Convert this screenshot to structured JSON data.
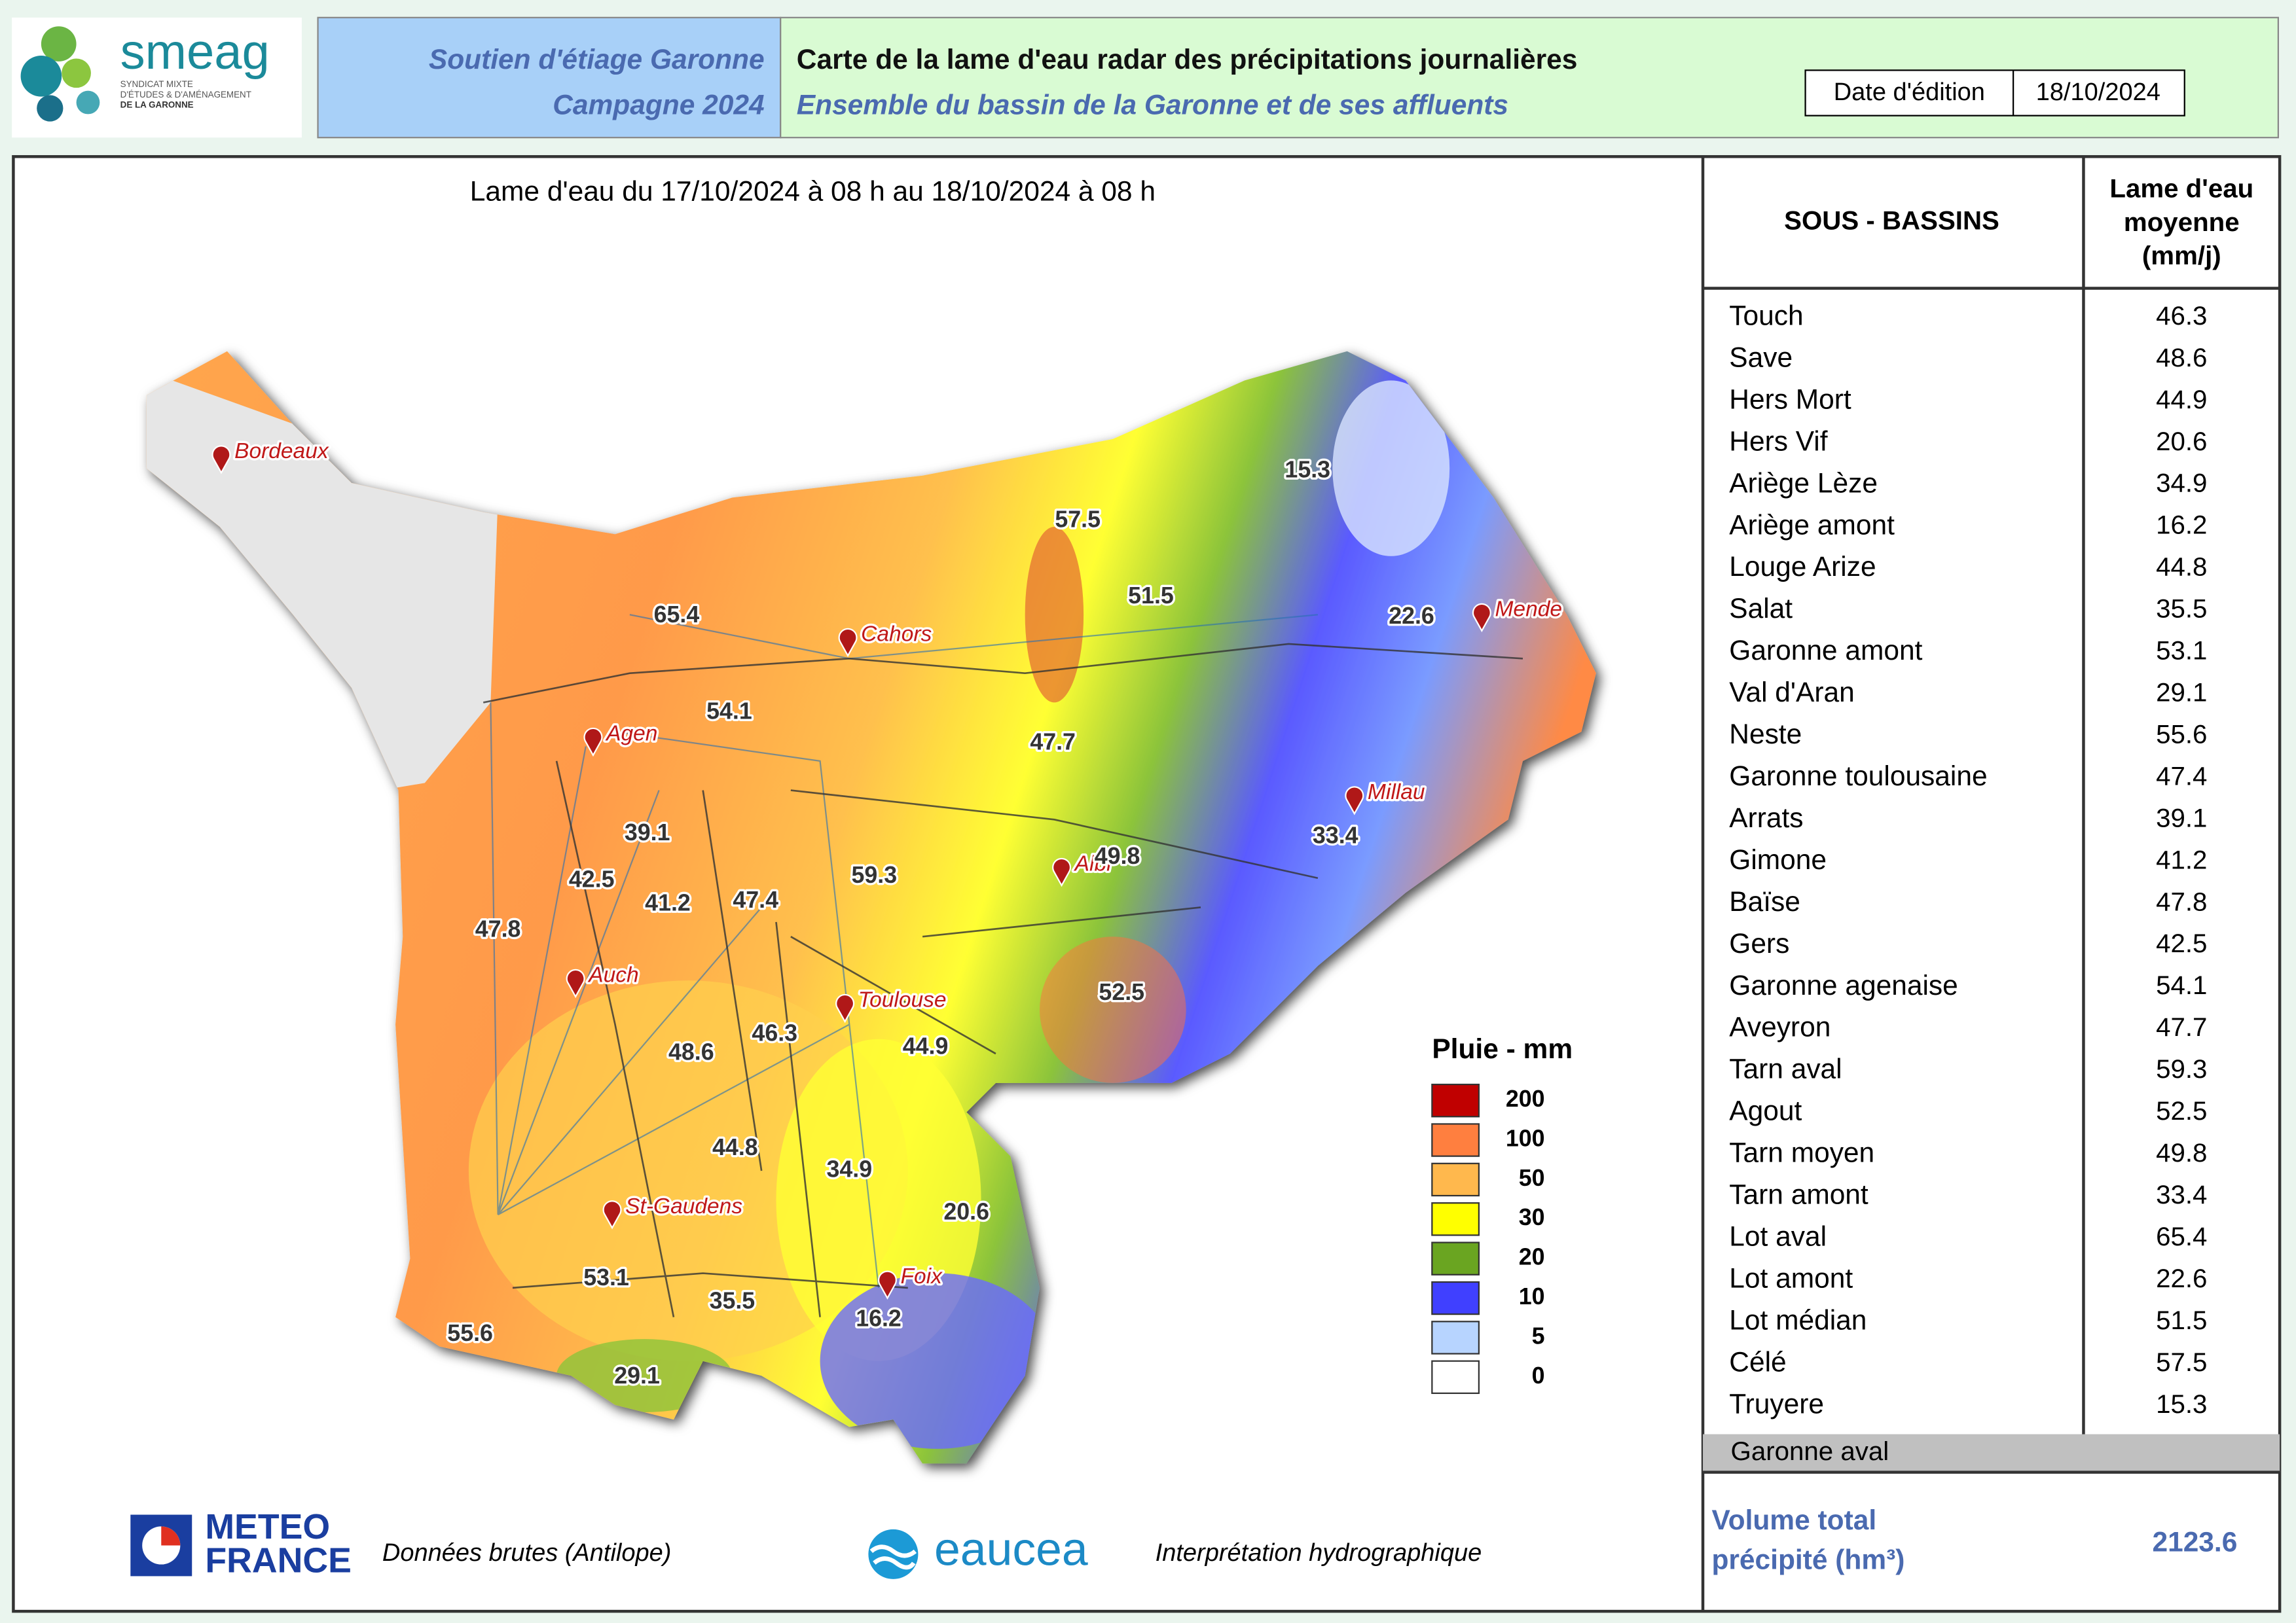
{
  "header": {
    "logo": {
      "name": "smeag",
      "lines": [
        "SYNDICAT MIXTE",
        "D'ÉTUDES & D'AMÉNAGEMENT",
        "DE LA GARONNE"
      ]
    },
    "program": [
      "Soutien d'étiage Garonne",
      "Campagne 2024"
    ],
    "title": "Carte de la lame d'eau radar des précipitations journalières",
    "subtitle": "Ensemble du bassin de la Garonne et de ses affluents",
    "date_label": "Date d'édition",
    "date": "18/10/2024"
  },
  "map": {
    "title": "Lame d'eau du 17/10/2024  à 08 h au  18/10/2024  à 08 h",
    "cities": [
      "Bordeaux",
      "Cahors",
      "Mende",
      "Agen",
      "Millau",
      "Albi",
      "Auch",
      "Toulouse",
      "St-Gaudens",
      "Foix"
    ],
    "value_labels": [
      "15.3",
      "57.5",
      "51.5",
      "65.4",
      "22.6",
      "54.1",
      "47.7",
      "39.1",
      "49.8",
      "33.4",
      "59.3",
      "42.5",
      "41.2",
      "47.4",
      "47.8",
      "52.5",
      "46.3",
      "48.6",
      "44.9",
      "44.8",
      "34.9",
      "20.6",
      "53.1",
      "35.5",
      "16.2",
      "55.6",
      "29.1"
    ],
    "legend": {
      "title": "Pluie - mm",
      "items": [
        {
          "value": 200,
          "color": "#c00000"
        },
        {
          "value": 100,
          "color": "#ff7f3f"
        },
        {
          "value": 50,
          "color": "#ffb84d"
        },
        {
          "value": 30,
          "color": "#ffff00"
        },
        {
          "value": 20,
          "color": "#6aa521"
        },
        {
          "value": 10,
          "color": "#4040ff"
        },
        {
          "value": 5,
          "color": "#b7d4ff"
        },
        {
          "value": 0,
          "color": "#ffffff"
        }
      ]
    }
  },
  "table": {
    "headers": [
      "SOUS - BASSINS",
      [
        "Lame d'eau",
        "moyenne",
        "(mm/j)"
      ]
    ],
    "rows": [
      [
        "Touch",
        46.3
      ],
      [
        "Save",
        48.6
      ],
      [
        "Hers Mort",
        44.9
      ],
      [
        "Hers Vif",
        20.6
      ],
      [
        "Ariège Lèze",
        34.9
      ],
      [
        "Ariège amont",
        16.2
      ],
      [
        "Louge Arize",
        44.8
      ],
      [
        "Salat",
        35.5
      ],
      [
        "Garonne amont",
        53.1
      ],
      [
        "Val d'Aran",
        29.1
      ],
      [
        "Neste",
        55.6
      ],
      [
        "Garonne toulousaine",
        47.4
      ],
      [
        "Arrats",
        39.1
      ],
      [
        "Gimone",
        41.2
      ],
      [
        "Baïse",
        47.8
      ],
      [
        "Gers",
        42.5
      ],
      [
        "Garonne agenaise",
        54.1
      ],
      [
        "Aveyron",
        47.7
      ],
      [
        "Tarn aval",
        59.3
      ],
      [
        "Agout",
        52.5
      ],
      [
        "Tarn moyen",
        49.8
      ],
      [
        "Tarn amont",
        33.4
      ],
      [
        "Lot aval",
        65.4
      ],
      [
        "Lot amont",
        22.6
      ],
      [
        "Lot médian",
        51.5
      ],
      [
        "Célé",
        57.5
      ],
      [
        "Truyere",
        15.3
      ]
    ],
    "shaded_row": "Garonne aval",
    "total_label": [
      "Volume total",
      "précipité (hm³)"
    ],
    "total_value": 2123.6
  },
  "footer": {
    "meteo": [
      "METEO",
      "FRANCE"
    ],
    "meteo_caption": "Données brutes (Antilope)",
    "eaucea": "eaucea",
    "eaucea_caption": "Interprétation hydrographique"
  }
}
